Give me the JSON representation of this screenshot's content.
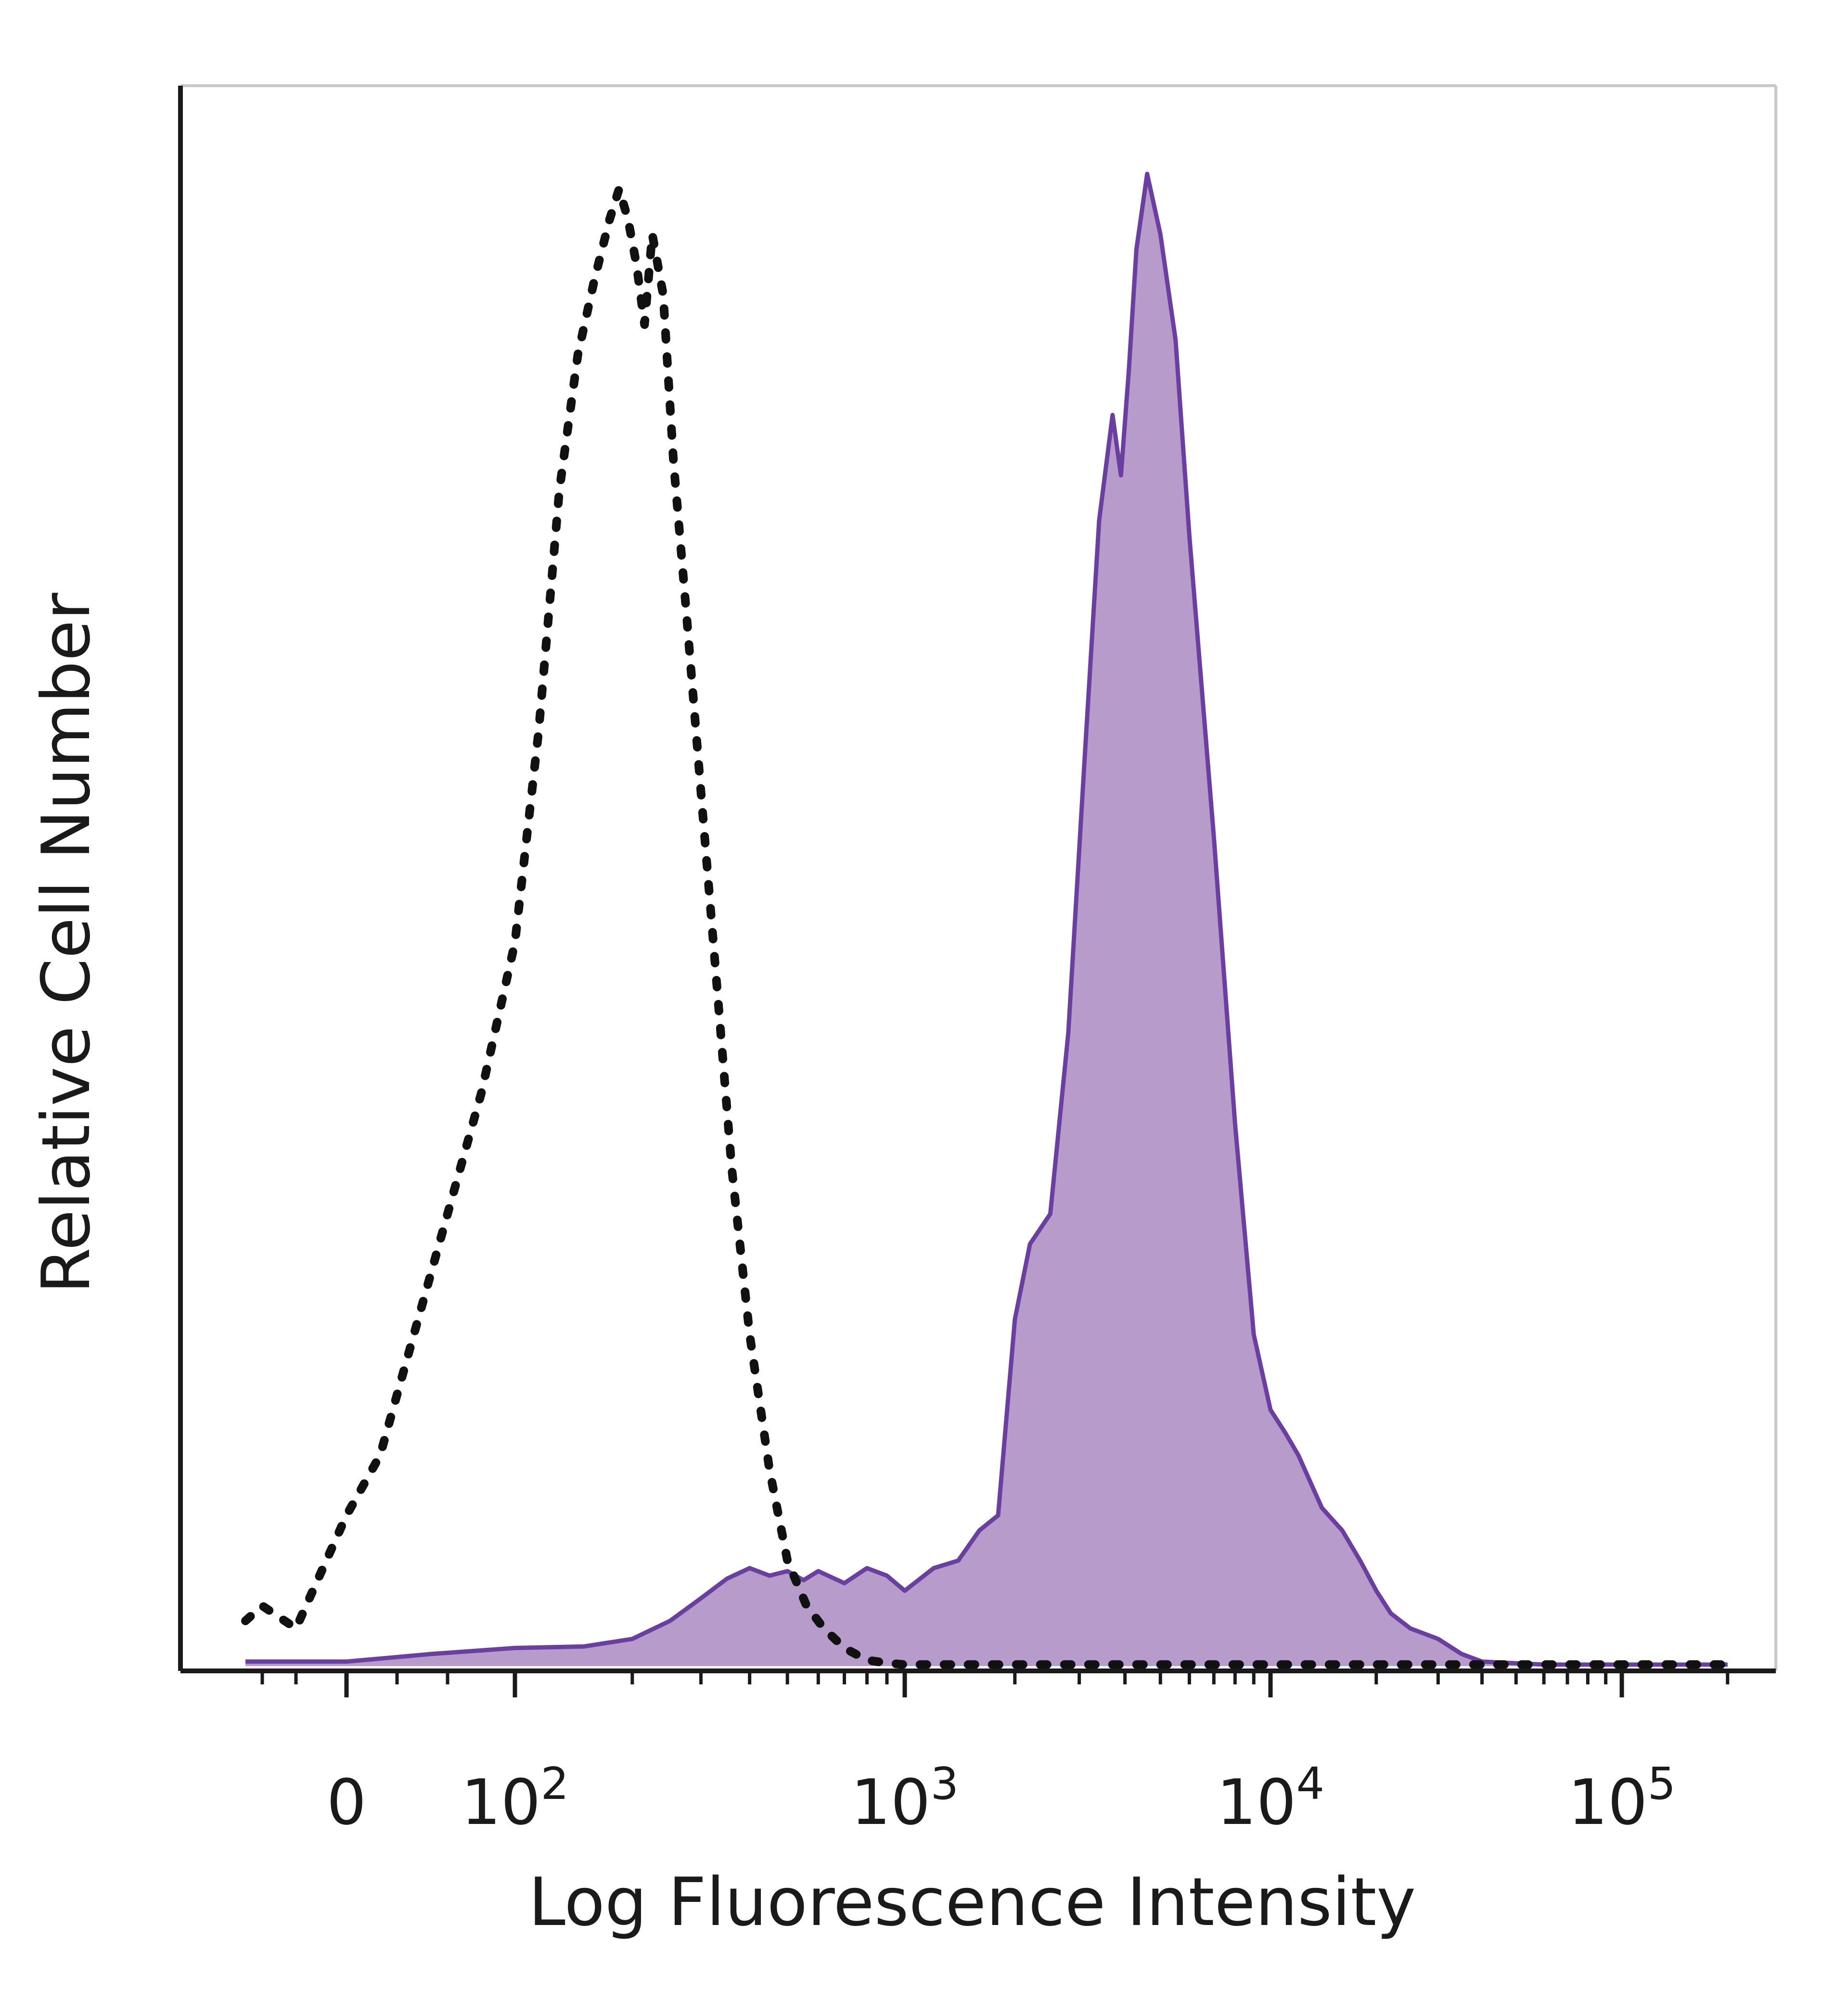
{
  "chart_data": {
    "type": "area",
    "title": "",
    "xlabel": "Log Fluorescence Intensity",
    "ylabel": "Relative Cell Number",
    "x_scale": "biexponential (log)",
    "y_scale": "linear, unlabeled",
    "xlim": [
      -60,
      200000
    ],
    "ylim": [
      0,
      1
    ],
    "grid": false,
    "legend": "none",
    "x_tick_labels": [
      {
        "value": 0,
        "base": "0",
        "exp": ""
      },
      {
        "value": 100,
        "base": "10",
        "exp": "2"
      },
      {
        "value": 1000,
        "base": "10",
        "exp": "3"
      },
      {
        "value": 10000,
        "base": "10",
        "exp": "4"
      },
      {
        "value": 100000,
        "base": "10",
        "exp": "5"
      }
    ],
    "series": [
      {
        "style": "dotted line",
        "color": "#111111",
        "x": [
          -60,
          -50,
          -30,
          0,
          20,
          40,
          60,
          80,
          100,
          115,
          130,
          145,
          160,
          175,
          185,
          195,
          205,
          215,
          225,
          240,
          255,
          275,
          300,
          330,
          360,
          400,
          450,
          500,
          560,
          620,
          700,
          800,
          900,
          1000,
          2000,
          5000,
          20000,
          100000,
          200000
        ],
        "y": [
          0.03,
          0.04,
          0.025,
          0.1,
          0.14,
          0.22,
          0.3,
          0.38,
          0.48,
          0.62,
          0.78,
          0.87,
          0.92,
          0.96,
          0.98,
          0.96,
          0.93,
          0.89,
          0.95,
          0.91,
          0.8,
          0.7,
          0.58,
          0.45,
          0.33,
          0.22,
          0.13,
          0.07,
          0.04,
          0.025,
          0.012,
          0.004,
          0.002,
          0.001,
          0.001,
          0.001,
          0.001,
          0.001,
          0.001
        ]
      },
      {
        "style": "filled area",
        "color": "#6a3fa0",
        "fill": "#b69bcb",
        "x": [
          -60,
          0,
          50,
          100,
          150,
          200,
          250,
          300,
          350,
          400,
          450,
          500,
          550,
          600,
          700,
          800,
          900,
          1000,
          1200,
          1400,
          1600,
          1800,
          2000,
          2200,
          2500,
          2800,
          3100,
          3400,
          3700,
          3900,
          4100,
          4300,
          4600,
          5000,
          5500,
          6000,
          7000,
          8000,
          9000,
          10000,
          11000,
          12000,
          14000,
          16000,
          18000,
          20000,
          22000,
          25000,
          30000,
          35000,
          40000,
          60000,
          100000,
          200000
        ],
        "y": [
          0.003,
          0.003,
          0.008,
          0.012,
          0.013,
          0.018,
          0.03,
          0.045,
          0.058,
          0.065,
          0.06,
          0.063,
          0.057,
          0.063,
          0.055,
          0.065,
          0.06,
          0.05,
          0.065,
          0.07,
          0.09,
          0.1,
          0.23,
          0.28,
          0.3,
          0.42,
          0.6,
          0.76,
          0.83,
          0.79,
          0.86,
          0.94,
          0.99,
          0.95,
          0.88,
          0.75,
          0.55,
          0.36,
          0.22,
          0.17,
          0.155,
          0.14,
          0.105,
          0.09,
          0.07,
          0.05,
          0.035,
          0.025,
          0.018,
          0.008,
          0.003,
          0.001,
          0.001,
          0.001
        ]
      }
    ]
  }
}
